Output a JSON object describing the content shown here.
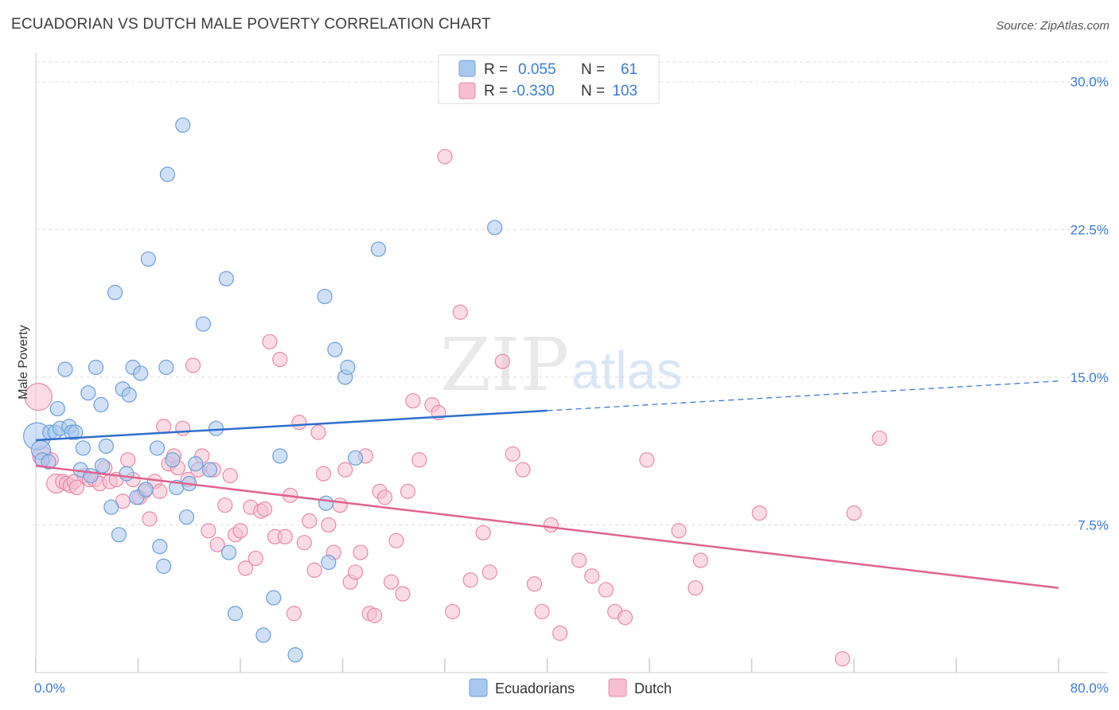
{
  "title": "ECUADORIAN VS DUTCH MALE POVERTY CORRELATION CHART",
  "source": "Source: ZipAtlas.com",
  "watermark": {
    "zip": "ZIP",
    "atlas": "atlas"
  },
  "legend_stats": [
    {
      "r_label": "R =",
      "r_value": "0.055",
      "n_label": "N =",
      "n_value": "61"
    },
    {
      "r_label": "R =",
      "r_value": "-0.330",
      "n_label": "N =",
      "n_value": "103"
    }
  ],
  "colors": {
    "ecuadorians_fill": "#a9c8f0",
    "ecuadorians_stroke": "#6b9fd8",
    "ecuadorians_line": "#2f6fcc",
    "dutch_fill": "#f7bfd1",
    "dutch_stroke": "#e88aa8",
    "dutch_line": "#e2628f",
    "grid": "#dddddd",
    "axis_text": "#3a7bd5"
  },
  "chart_data": {
    "type": "scatter",
    "ylabel": "Male Poverty",
    "x_tick_labels": [
      "0.0%",
      "80.0%"
    ],
    "y_tick_labels": [
      "7.5%",
      "15.0%",
      "22.5%",
      "30.0%"
    ],
    "y_ticks": [
      7.5,
      15.0,
      22.5,
      30.0
    ],
    "xlim": [
      0,
      80
    ],
    "ylim": [
      0,
      31
    ],
    "grid": true,
    "legend_position": "top-center",
    "series": [
      {
        "name": "Ecuadorians",
        "trend": {
          "x": [
            0,
            40
          ],
          "y": [
            11.8,
            13.3
          ],
          "dashed_extension_to": [
            80,
            14.8
          ]
        },
        "points": [
          [
            0.1,
            12.0,
            3
          ],
          [
            0.4,
            11.3,
            2
          ],
          [
            0.5,
            10.8,
            1
          ],
          [
            1.0,
            10.7,
            1
          ],
          [
            1.1,
            12.2,
            1
          ],
          [
            1.5,
            12.2,
            1
          ],
          [
            1.7,
            13.4,
            1
          ],
          [
            1.9,
            12.4,
            1
          ],
          [
            2.3,
            15.4,
            1
          ],
          [
            2.6,
            12.5,
            1
          ],
          [
            2.8,
            12.2,
            1
          ],
          [
            3.1,
            12.2,
            1
          ],
          [
            3.5,
            10.3,
            1
          ],
          [
            3.7,
            11.4,
            1
          ],
          [
            4.1,
            14.2,
            1
          ],
          [
            4.3,
            10.0,
            1
          ],
          [
            4.7,
            15.5,
            1
          ],
          [
            5.1,
            13.6,
            1
          ],
          [
            5.2,
            10.5,
            1
          ],
          [
            5.5,
            11.5,
            1
          ],
          [
            5.9,
            8.4,
            1
          ],
          [
            6.2,
            19.3,
            1
          ],
          [
            6.5,
            7.0,
            1
          ],
          [
            6.8,
            14.4,
            1
          ],
          [
            7.1,
            10.1,
            1
          ],
          [
            7.3,
            14.1,
            1
          ],
          [
            7.6,
            15.5,
            1
          ],
          [
            7.9,
            8.9,
            1
          ],
          [
            8.2,
            15.2,
            1
          ],
          [
            8.6,
            9.3,
            1
          ],
          [
            8.8,
            21.0,
            1
          ],
          [
            9.5,
            11.4,
            1
          ],
          [
            9.7,
            6.4,
            1
          ],
          [
            10.0,
            5.4,
            1
          ],
          [
            10.2,
            15.5,
            1
          ],
          [
            10.3,
            25.3,
            1
          ],
          [
            10.7,
            10.8,
            1
          ],
          [
            11.0,
            9.4,
            1
          ],
          [
            11.5,
            27.8,
            1
          ],
          [
            11.8,
            7.9,
            1
          ],
          [
            12.0,
            9.6,
            1
          ],
          [
            12.5,
            10.6,
            1
          ],
          [
            13.1,
            17.7,
            1
          ],
          [
            13.6,
            10.3,
            1
          ],
          [
            14.1,
            12.4,
            1
          ],
          [
            14.9,
            20.0,
            1
          ],
          [
            15.1,
            6.1,
            1
          ],
          [
            15.6,
            3.0,
            1
          ],
          [
            17.8,
            1.9,
            1
          ],
          [
            18.6,
            3.8,
            1
          ],
          [
            19.1,
            11.0,
            1
          ],
          [
            20.3,
            0.9,
            1
          ],
          [
            22.6,
            19.1,
            1
          ],
          [
            22.7,
            8.6,
            1
          ],
          [
            22.9,
            5.6,
            1
          ],
          [
            23.4,
            16.4,
            1
          ],
          [
            24.2,
            15.0,
            1
          ],
          [
            24.4,
            15.5,
            1
          ],
          [
            25.0,
            10.9,
            1
          ],
          [
            26.8,
            21.5,
            1
          ],
          [
            35.9,
            22.6,
            1
          ]
        ]
      },
      {
        "name": "Dutch",
        "trend": {
          "x": [
            0,
            80
          ],
          "y": [
            10.5,
            4.3
          ]
        },
        "points": [
          [
            0.2,
            14.0,
            3
          ],
          [
            0.5,
            11.0,
            2
          ],
          [
            1.2,
            10.8,
            1
          ],
          [
            1.6,
            9.6,
            2
          ],
          [
            2.1,
            9.7,
            1
          ],
          [
            2.4,
            9.6,
            1
          ],
          [
            2.7,
            9.5,
            1
          ],
          [
            3.0,
            9.7,
            1
          ],
          [
            3.2,
            9.4,
            1
          ],
          [
            3.8,
            10.0,
            1
          ],
          [
            4.2,
            9.8,
            1
          ],
          [
            4.6,
            9.8,
            1
          ],
          [
            5.0,
            9.6,
            1
          ],
          [
            5.4,
            10.4,
            1
          ],
          [
            5.8,
            9.7,
            1
          ],
          [
            6.3,
            9.8,
            1
          ],
          [
            6.8,
            8.7,
            1
          ],
          [
            7.2,
            10.8,
            1
          ],
          [
            7.6,
            9.8,
            1
          ],
          [
            8.1,
            8.9,
            1
          ],
          [
            8.5,
            9.2,
            1
          ],
          [
            8.9,
            7.8,
            1
          ],
          [
            9.3,
            9.7,
            1
          ],
          [
            9.7,
            9.2,
            1
          ],
          [
            10.0,
            12.5,
            1
          ],
          [
            10.4,
            10.6,
            1
          ],
          [
            10.8,
            11.0,
            1
          ],
          [
            11.1,
            10.4,
            1
          ],
          [
            11.5,
            12.4,
            1
          ],
          [
            11.9,
            9.8,
            1
          ],
          [
            12.3,
            15.6,
            1
          ],
          [
            12.7,
            10.3,
            1
          ],
          [
            13.0,
            11.0,
            1
          ],
          [
            13.5,
            7.2,
            1
          ],
          [
            13.9,
            10.3,
            1
          ],
          [
            14.2,
            6.5,
            1
          ],
          [
            14.8,
            8.5,
            1
          ],
          [
            15.2,
            10.0,
            1
          ],
          [
            15.6,
            7.0,
            1
          ],
          [
            16.0,
            7.2,
            1
          ],
          [
            16.4,
            5.3,
            1
          ],
          [
            16.8,
            8.4,
            1
          ],
          [
            17.2,
            5.8,
            1
          ],
          [
            17.6,
            8.2,
            1
          ],
          [
            17.9,
            8.3,
            1
          ],
          [
            18.3,
            16.8,
            1
          ],
          [
            18.7,
            6.9,
            1
          ],
          [
            19.1,
            15.9,
            1
          ],
          [
            19.5,
            6.9,
            1
          ],
          [
            19.9,
            9.0,
            1
          ],
          [
            20.2,
            3.0,
            1
          ],
          [
            20.6,
            12.7,
            1
          ],
          [
            21.0,
            6.6,
            1
          ],
          [
            21.4,
            7.7,
            1
          ],
          [
            21.8,
            5.2,
            1
          ],
          [
            22.1,
            12.2,
            1
          ],
          [
            22.5,
            10.1,
            1
          ],
          [
            22.9,
            7.5,
            1
          ],
          [
            23.3,
            6.1,
            1
          ],
          [
            23.8,
            8.5,
            1
          ],
          [
            24.2,
            10.3,
            1
          ],
          [
            24.6,
            4.6,
            1
          ],
          [
            25.0,
            5.1,
            1
          ],
          [
            25.4,
            6.1,
            1
          ],
          [
            25.8,
            11.0,
            1
          ],
          [
            26.1,
            3.0,
            1
          ],
          [
            26.5,
            2.9,
            1
          ],
          [
            26.9,
            9.2,
            1
          ],
          [
            27.3,
            8.9,
            1
          ],
          [
            27.8,
            4.6,
            1
          ],
          [
            28.2,
            6.7,
            1
          ],
          [
            28.7,
            4.0,
            1
          ],
          [
            29.1,
            9.2,
            1
          ],
          [
            29.5,
            13.8,
            1
          ],
          [
            30.0,
            10.8,
            1
          ],
          [
            31.0,
            13.6,
            1
          ],
          [
            31.5,
            13.2,
            1
          ],
          [
            32.0,
            26.2,
            1
          ],
          [
            32.6,
            3.1,
            1
          ],
          [
            33.2,
            18.3,
            1
          ],
          [
            34.0,
            4.7,
            1
          ],
          [
            35.0,
            7.1,
            1
          ],
          [
            35.5,
            5.1,
            1
          ],
          [
            36.5,
            15.8,
            1
          ],
          [
            37.3,
            11.1,
            1
          ],
          [
            38.1,
            10.3,
            1
          ],
          [
            39.0,
            4.5,
            1
          ],
          [
            39.6,
            3.1,
            1
          ],
          [
            40.3,
            7.5,
            1
          ],
          [
            41.0,
            2.0,
            1
          ],
          [
            42.5,
            5.7,
            1
          ],
          [
            43.5,
            4.9,
            1
          ],
          [
            44.6,
            4.2,
            1
          ],
          [
            45.3,
            3.1,
            1
          ],
          [
            46.1,
            2.8,
            1
          ],
          [
            47.8,
            10.8,
            1
          ],
          [
            50.3,
            7.2,
            1
          ],
          [
            51.6,
            4.3,
            1
          ],
          [
            56.6,
            8.1,
            1
          ],
          [
            63.1,
            0.7,
            1
          ],
          [
            64.0,
            8.1,
            1
          ],
          [
            66.0,
            11.9,
            1
          ],
          [
            52.0,
            5.7,
            1
          ]
        ]
      }
    ]
  }
}
